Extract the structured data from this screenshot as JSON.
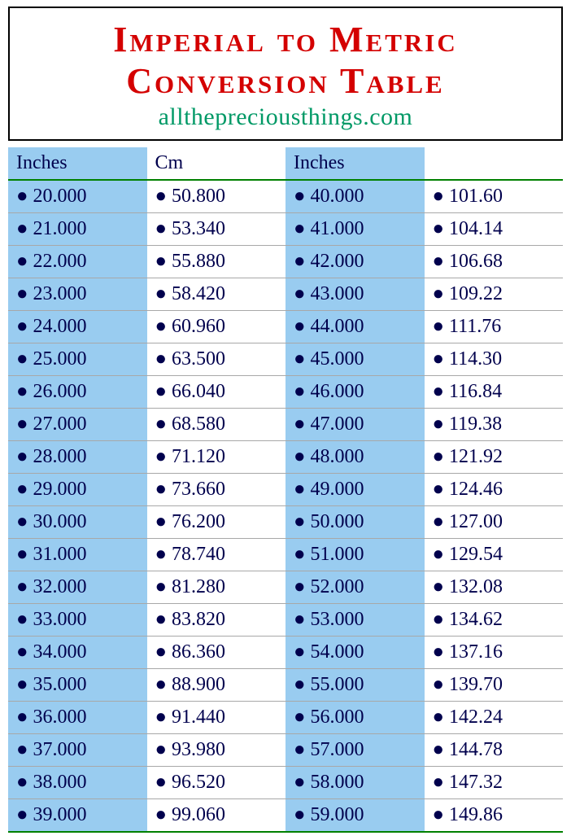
{
  "header": {
    "title_line1": "Imperial to Metric",
    "title_line2": "Conversion Table",
    "title_color": "#d40000",
    "title_fontsize": 44,
    "subtitle": "allthepreciousthings.com",
    "subtitle_color": "#009966",
    "subtitle_fontsize": 30,
    "border_color": "#000000",
    "background": "#ffffff"
  },
  "table": {
    "columns": [
      {
        "label": "Inches",
        "bg": "#99ccf0"
      },
      {
        "label": "Cm",
        "bg": "#ffffff"
      },
      {
        "label": "Inches",
        "bg": "#99ccf0"
      },
      {
        "label": "",
        "bg": "#ffffff"
      }
    ],
    "header_fontsize": 24,
    "header_color": "#00004d",
    "header_border_color": "#008000",
    "cell_fontsize": 24,
    "cell_color": "#00004d",
    "row_border_color": "#a8a8a8",
    "bottom_border_color": "#008000",
    "bullet_char": "●",
    "column_bg_blue": "#99ccf0",
    "column_bg_white": "#ffffff",
    "rows": [
      [
        "20.000",
        "50.800",
        "40.000",
        "101.60"
      ],
      [
        "21.000",
        "53.340",
        "41.000",
        "104.14"
      ],
      [
        "22.000",
        "55.880",
        "42.000",
        "106.68"
      ],
      [
        "23.000",
        "58.420",
        "43.000",
        "109.22"
      ],
      [
        "24.000",
        "60.960",
        "44.000",
        "111.76"
      ],
      [
        "25.000",
        "63.500",
        "45.000",
        "114.30"
      ],
      [
        "26.000",
        "66.040",
        "46.000",
        "116.84"
      ],
      [
        "27.000",
        "68.580",
        "47.000",
        "119.38"
      ],
      [
        "28.000",
        "71.120",
        "48.000",
        "121.92"
      ],
      [
        "29.000",
        "73.660",
        "49.000",
        "124.46"
      ],
      [
        "30.000",
        "76.200",
        "50.000",
        "127.00"
      ],
      [
        "31.000",
        "78.740",
        "51.000",
        "129.54"
      ],
      [
        "32.000",
        "81.280",
        "52.000",
        "132.08"
      ],
      [
        "33.000",
        "83.820",
        "53.000",
        "134.62"
      ],
      [
        "34.000",
        "86.360",
        "54.000",
        "137.16"
      ],
      [
        "35.000",
        "88.900",
        "55.000",
        "139.70"
      ],
      [
        "36.000",
        "91.440",
        "56.000",
        "142.24"
      ],
      [
        "37.000",
        "93.980",
        "57.000",
        "144.78"
      ],
      [
        "38.000",
        "96.520",
        "58.000",
        "147.32"
      ],
      [
        "39.000",
        "99.060",
        "59.000",
        "149.86"
      ]
    ]
  }
}
